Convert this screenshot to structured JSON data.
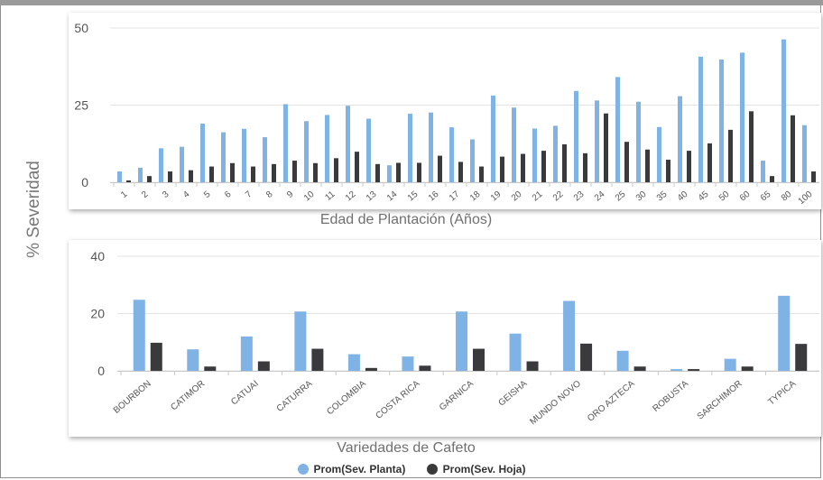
{
  "y_axis_title": "% Severidad",
  "colors": {
    "planta": "#7fb2e5",
    "hoja": "#3a3a3c"
  },
  "legend": [
    {
      "label": "Prom(Sev. Planta)",
      "color": "#7fb2e5"
    },
    {
      "label": "Prom(Sev. Hoja)",
      "color": "#3a3a3c"
    }
  ],
  "chart_data": [
    {
      "type": "bar",
      "xlabel": "Edad de Plantación (Años)",
      "ylim": [
        0,
        50
      ],
      "yticks": [
        0,
        25,
        50
      ],
      "categories": [
        "1",
        "2",
        "3",
        "4",
        "5",
        "6",
        "7",
        "8",
        "9",
        "10",
        "11",
        "12",
        "13",
        "14",
        "15",
        "16",
        "17",
        "18",
        "19",
        "20",
        "21",
        "22",
        "23",
        "24",
        "25",
        "30",
        "35",
        "40",
        "45",
        "50",
        "60",
        "65",
        "80",
        "100"
      ],
      "series": [
        {
          "name": "Prom(Sev. Planta)",
          "values": [
            3.5,
            4.7,
            11,
            11.5,
            19,
            16.2,
            17.3,
            14.6,
            25.3,
            19.8,
            21.8,
            24.8,
            20.6,
            5.5,
            22.2,
            22.6,
            17.8,
            13.9,
            28.1,
            24.2,
            17.4,
            18.3,
            29.6,
            26.5,
            34.1,
            26.1,
            17.9,
            27.9,
            40.7,
            39.8,
            42,
            7,
            46.3,
            18.5
          ]
        },
        {
          "name": "Prom(Sev. Hoja)",
          "values": [
            0.6,
            2,
            3.5,
            3.9,
            5.1,
            6.2,
            5.1,
            5.9,
            7,
            6.2,
            7.8,
            9.9,
            5.9,
            6.3,
            6.3,
            8.6,
            6.6,
            5.1,
            8.3,
            9.2,
            10.2,
            12.3,
            9.4,
            22.3,
            13.1,
            10.6,
            7.3,
            10.2,
            12.6,
            17,
            23,
            2,
            21.7,
            3.5
          ]
        }
      ]
    },
    {
      "type": "bar",
      "xlabel": "Variedades de Cafeto",
      "ylim": [
        0,
        40
      ],
      "yticks": [
        0,
        20,
        40
      ],
      "categories": [
        "BOURBON",
        "CATIMOR",
        "CATUAI",
        "CATURRA",
        "COLOMBIA",
        "COSTA RICA",
        "GARNICA",
        "GEISHA",
        "MUNDO NOVO",
        "ORO AZTECA",
        "ROBUSTA",
        "SARCHIMOR",
        "TYPICA"
      ],
      "series": [
        {
          "name": "Prom(Sev. Planta)",
          "values": [
            24.8,
            7.5,
            12,
            20.7,
            5.8,
            5,
            20.7,
            13,
            24.4,
            7,
            0.6,
            4.2,
            26.2
          ]
        },
        {
          "name": "Prom(Sev. Hoja)",
          "values": [
            9.8,
            1.5,
            3.3,
            7.7,
            1,
            1.8,
            7.7,
            3.3,
            9.5,
            1.5,
            0.6,
            1.5,
            9.4
          ]
        }
      ]
    }
  ]
}
